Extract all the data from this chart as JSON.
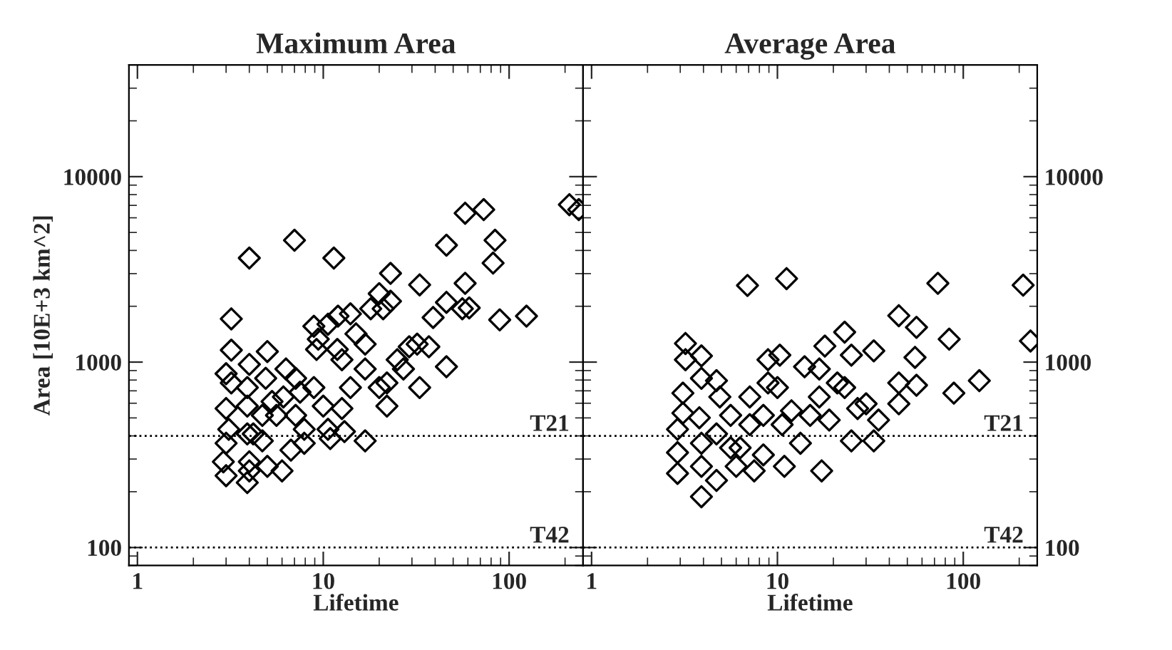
{
  "chart_data": [
    {
      "type": "scatter",
      "title": "Maximum Area",
      "xlabel": "Lifetime",
      "ylabel": "Area [10E+3 km^2]",
      "color": "#000000",
      "marker": "diamond",
      "log": "xy",
      "xlim": [
        0.9,
        250
      ],
      "ylim": [
        80,
        40000
      ],
      "xticks": [
        1,
        10,
        100
      ],
      "yticks": [
        100,
        1000,
        10000
      ],
      "ref_lines": [
        {
          "axis": "y",
          "value": 400,
          "label": "T21",
          "line_style": "dotted"
        },
        {
          "axis": "y",
          "value": 100,
          "label": "T42",
          "line_style": "dotted"
        }
      ],
      "x": [
        3.2,
        3.2,
        3.0,
        3.2,
        3.0,
        3.1,
        3.0,
        2.9,
        3.0,
        3.9,
        4.0,
        7.0,
        11.4,
        23,
        33,
        46,
        58,
        73,
        84,
        82,
        211,
        237,
        89,
        124,
        58,
        56,
        61,
        46,
        39,
        46,
        33,
        32,
        37,
        27,
        22,
        21,
        23,
        20,
        18,
        14,
        12,
        8.9,
        10.6,
        9.2,
        11.9,
        12.6,
        14,
        16.8,
        16.8,
        20,
        16.8,
        22,
        12.6,
        10,
        10.6,
        7.9,
        7.1,
        6.3,
        5.0,
        4.9,
        4.0,
        3.9,
        3.9,
        3.9,
        4.2,
        4.7,
        5.0,
        6.0,
        6.7,
        7.1,
        5.6,
        4.7,
        4.0,
        4.0,
        7.9,
        13,
        10.9,
        8.9,
        7.5,
        5.3,
        6.1,
        9.4,
        15,
        25,
        29
      ],
      "values": [
        1710,
        1160,
        866,
        772,
        562,
        434,
        365,
        290,
        244,
        224,
        3640,
        4540,
        3640,
        3010,
        2610,
        4270,
        6350,
        6640,
        4540,
        3420,
        7060,
        6640,
        1690,
        1770,
        2660,
        1940,
        1960,
        2100,
        1740,
        944,
        729,
        1250,
        1210,
        918,
        772,
        1940,
        2130,
        2340,
        1940,
        1820,
        1770,
        1560,
        1600,
        1170,
        1170,
        1030,
        729,
        1250,
        918,
        729,
        376,
        579,
        562,
        579,
        434,
        434,
        818,
        918,
        1140,
        818,
        972,
        729,
        579,
        410,
        410,
        376,
        274,
        259,
        335,
        516,
        516,
        516,
        290,
        259,
        365,
        422,
        387,
        729,
        688,
        613,
        649,
        1330,
        1420,
        1030,
        1210
      ]
    },
    {
      "type": "scatter",
      "title": "Average Area",
      "xlabel": "Lifetime",
      "color": "#000000",
      "marker": "diamond",
      "log": "xy",
      "xlim": [
        0.9,
        250
      ],
      "ylim": [
        80,
        40000
      ],
      "xticks": [
        1,
        10,
        100
      ],
      "yticks": [
        100,
        1000,
        10000
      ],
      "ref_lines": [
        {
          "axis": "y",
          "value": 400,
          "label": "T21",
          "line_style": "dotted"
        },
        {
          "axis": "y",
          "value": 100,
          "label": "T42",
          "line_style": "dotted"
        }
      ],
      "x": [
        3.2,
        3.2,
        3.9,
        3.1,
        3.1,
        2.9,
        2.9,
        2.9,
        3.8,
        3.9,
        4.7,
        4.9,
        3.9,
        3.9,
        3.9,
        4.7,
        6.0,
        5.6,
        6.9,
        11.2,
        73,
        45,
        56,
        84,
        122,
        89,
        56,
        45,
        55,
        33,
        23,
        18,
        25,
        8.9,
        10.3,
        14,
        16.8,
        21,
        23,
        30,
        35,
        33,
        25,
        17.3,
        10.9,
        13.3,
        10.6,
        8.4,
        7.1,
        8.9,
        10,
        7.1,
        6.3,
        8.4,
        7.5,
        5.6,
        4.7,
        11.9,
        15,
        19,
        27,
        45,
        16.8,
        210,
        230
      ],
      "values": [
        1260,
        1030,
        1080,
        680,
        531,
        434,
        325,
        251,
        501,
        818,
        794,
        649,
        365,
        274,
        188,
        230,
        274,
        516,
        2590,
        2820,
        2660,
        1780,
        1540,
        1330,
        794,
        680,
        750,
        772,
        1060,
        1150,
        1450,
        1220,
        1090,
        1030,
        1090,
        944,
        918,
        772,
        729,
        596,
        487,
        376,
        376,
        259,
        274,
        365,
        460,
        516,
        649,
        772,
        729,
        460,
        345,
        316,
        259,
        345,
        410,
        546,
        516,
        487,
        562,
        596,
        649,
        2600,
        1300
      ]
    }
  ]
}
